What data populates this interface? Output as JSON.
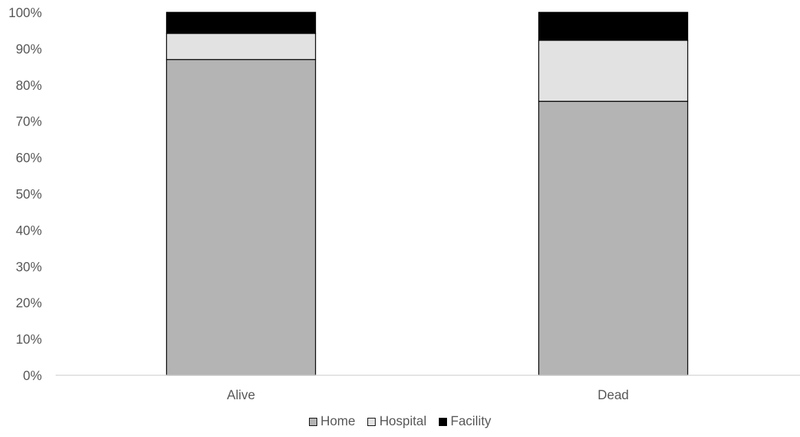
{
  "chart_data": {
    "type": "bar",
    "stacked": true,
    "categories": [
      "Alive",
      "Dead"
    ],
    "series": [
      {
        "name": "Home",
        "values": [
          87,
          75.5
        ],
        "color": "#b4b4b4"
      },
      {
        "name": "Hospital",
        "values": [
          7.2,
          16.8
        ],
        "color": "#e2e2e2"
      },
      {
        "name": "Facility",
        "values": [
          5.8,
          7.7
        ],
        "color": "#000000"
      }
    ],
    "ylim": [
      0,
      100
    ],
    "yticks": [
      "0%",
      "10%",
      "20%",
      "30%",
      "40%",
      "50%",
      "60%",
      "70%",
      "80%",
      "90%",
      "100%"
    ],
    "grid": false,
    "legend_position": "bottom"
  }
}
